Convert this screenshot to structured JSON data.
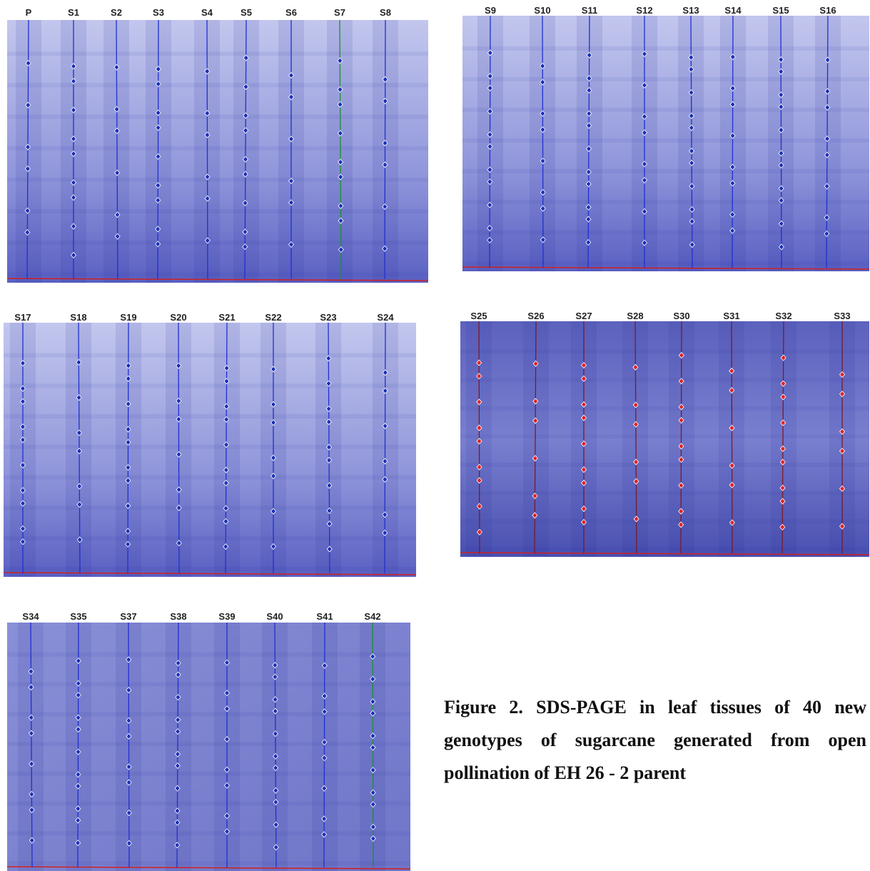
{
  "panels": [
    {
      "lanes": [
        "P",
        "S1",
        "S2",
        "S3",
        "S4",
        "S5",
        "S6",
        "S7",
        "S8"
      ]
    },
    {
      "lanes": [
        "S9",
        "S10",
        "S11",
        "S12",
        "S13",
        "S14",
        "S15",
        "S16"
      ]
    },
    {
      "lanes": [
        "S17",
        "S18",
        "S19",
        "S20",
        "S21",
        "S22",
        "S23",
        "S24"
      ]
    },
    {
      "lanes": [
        "S25",
        "S26",
        "S27",
        "S28",
        "S30",
        "S31",
        "S32",
        "S33"
      ]
    },
    {
      "lanes": [
        "S34",
        "S35",
        "S37",
        "S38",
        "S39",
        "S40",
        "S41",
        "S42"
      ]
    }
  ],
  "caption": "Figure 2. SDS-PAGE in leaf tissues of 40 new genotypes of sugarcane generated from open pollination of EH 26 - 2 parent"
}
